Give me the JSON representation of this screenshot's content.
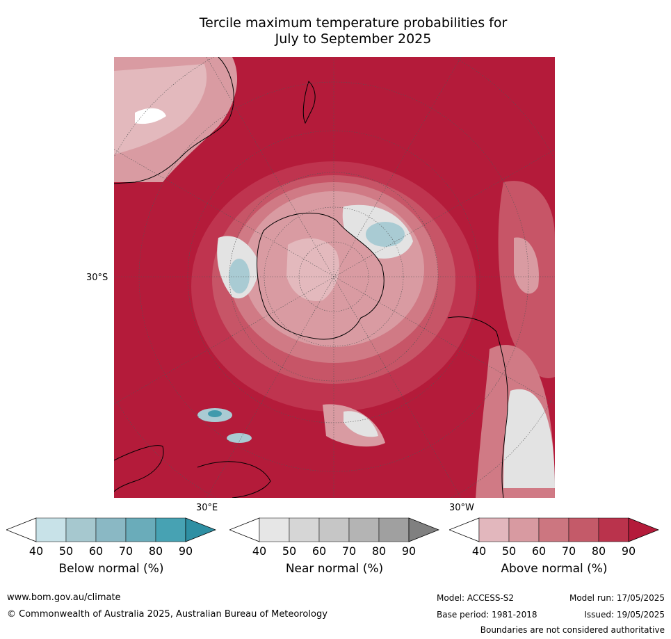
{
  "title_line1": "Tercile maximum temperature probabilities for",
  "title_line2": "July to September 2025",
  "map": {
    "lat_label": "30°S",
    "lon_label_e": "30°E",
    "lon_label_w": "30°W",
    "colors": {
      "above_90": "#b41b3a",
      "above_80": "#bf344f",
      "above_70": "#c75567",
      "above_60": "#d07a85",
      "above_50": "#d99ba2",
      "above_40": "#e3b9bd",
      "near": "#e3e3e3",
      "below": "#a9cbd3",
      "below_dark": "#3f9aac",
      "land": "#000000"
    }
  },
  "colorbars": [
    {
      "label": "Below normal (%)",
      "ticks": [
        "40",
        "50",
        "60",
        "70",
        "80",
        "90"
      ],
      "colors": [
        "#ffffff",
        "#c8e2e8",
        "#a6c8cf",
        "#8ab8c4",
        "#6aacba",
        "#47a2b3",
        "#2e8fa3"
      ]
    },
    {
      "label": "Near normal (%)",
      "ticks": [
        "40",
        "50",
        "60",
        "70",
        "80",
        "90"
      ],
      "colors": [
        "#ffffff",
        "#e6e6e6",
        "#d6d6d6",
        "#c6c6c6",
        "#b4b4b4",
        "#a0a0a0",
        "#808080"
      ]
    },
    {
      "label": "Above normal (%)",
      "ticks": [
        "40",
        "50",
        "60",
        "70",
        "80",
        "90"
      ],
      "colors": [
        "#ffffff",
        "#e2b7bd",
        "#d89aa1",
        "#cc7680",
        "#c45a69",
        "#ba334c",
        "#b41b3a"
      ]
    }
  ],
  "footer": {
    "url": "www.bom.gov.au/climate",
    "copyright": "© Commonwealth of Australia 2025, Australian Bureau of Meteorology",
    "model": "Model: ACCESS-S2",
    "base_period": "Base period: 1981-2018",
    "model_run": "Model run: 17/05/2025",
    "issued": "Issued: 19/05/2025",
    "disclaimer": "Boundaries are not considered authoritative"
  }
}
